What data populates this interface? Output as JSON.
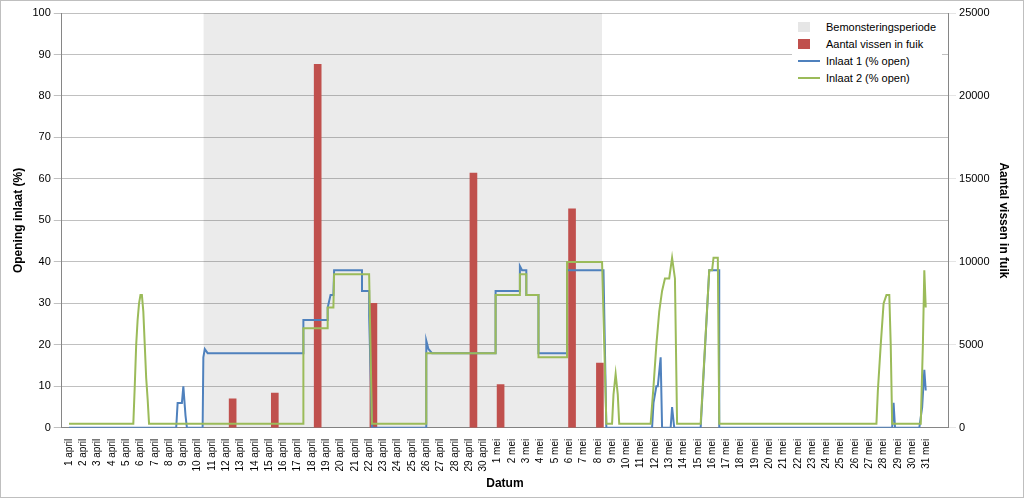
{
  "chart_data": {
    "type": "line",
    "x_label": "Datum",
    "y_label": "Opening inlaat (%)",
    "y2_label": "Aantal vissen in fuik",
    "xlim": [
      1,
      62
    ],
    "xticks": [
      {
        "value": 1,
        "label": "1 april"
      },
      {
        "value": 2,
        "label": "2 april"
      },
      {
        "value": 3,
        "label": "3 april"
      },
      {
        "value": 4,
        "label": "4 april"
      },
      {
        "value": 5,
        "label": "5 april"
      },
      {
        "value": 6,
        "label": "6 april"
      },
      {
        "value": 7,
        "label": "7 april"
      },
      {
        "value": 8,
        "label": "8 april"
      },
      {
        "value": 9,
        "label": "9 april"
      },
      {
        "value": 10,
        "label": "10 april"
      },
      {
        "value": 11,
        "label": "11 april"
      },
      {
        "value": 12,
        "label": "12 april"
      },
      {
        "value": 13,
        "label": "13 april"
      },
      {
        "value": 14,
        "label": "14 april"
      },
      {
        "value": 15,
        "label": "15 april"
      },
      {
        "value": 16,
        "label": "16 april"
      },
      {
        "value": 17,
        "label": "17 april"
      },
      {
        "value": 18,
        "label": "18 april"
      },
      {
        "value": 19,
        "label": "19 april"
      },
      {
        "value": 20,
        "label": "20 april"
      },
      {
        "value": 21,
        "label": "21 april"
      },
      {
        "value": 22,
        "label": "22 april"
      },
      {
        "value": 23,
        "label": "23 april"
      },
      {
        "value": 24,
        "label": "24 april"
      },
      {
        "value": 25,
        "label": "25 april"
      },
      {
        "value": 26,
        "label": "26 april"
      },
      {
        "value": 27,
        "label": "27 april"
      },
      {
        "value": 28,
        "label": "28 april"
      },
      {
        "value": 29,
        "label": "29 april"
      },
      {
        "value": 30,
        "label": "30 april"
      },
      {
        "value": 31,
        "label": "1 mei"
      },
      {
        "value": 32,
        "label": "2 mei"
      },
      {
        "value": 33,
        "label": "3 mei"
      },
      {
        "value": 34,
        "label": "4 mei"
      },
      {
        "value": 35,
        "label": "5 mei"
      },
      {
        "value": 36,
        "label": "6 mei"
      },
      {
        "value": 37,
        "label": "7 mei"
      },
      {
        "value": 38,
        "label": "8 mei"
      },
      {
        "value": 39,
        "label": "9 mei"
      },
      {
        "value": 40,
        "label": "10 mei"
      },
      {
        "value": 41,
        "label": "11 mei"
      },
      {
        "value": 42,
        "label": "12 mei"
      },
      {
        "value": 43,
        "label": "13 mei"
      },
      {
        "value": 44,
        "label": "14 mei"
      },
      {
        "value": 45,
        "label": "15 mei"
      },
      {
        "value": 46,
        "label": "16 mei"
      },
      {
        "value": 47,
        "label": "17 mei"
      },
      {
        "value": 48,
        "label": "18 mei"
      },
      {
        "value": 49,
        "label": "19 mei"
      },
      {
        "value": 50,
        "label": "20 mei"
      },
      {
        "value": 51,
        "label": "21 mei"
      },
      {
        "value": 52,
        "label": "22 mei"
      },
      {
        "value": 53,
        "label": "23 mei"
      },
      {
        "value": 54,
        "label": "24 mei"
      },
      {
        "value": 55,
        "label": "25 mei"
      },
      {
        "value": 56,
        "label": "26 mei"
      },
      {
        "value": 57,
        "label": "27 mei"
      },
      {
        "value": 58,
        "label": "28 mei"
      },
      {
        "value": 59,
        "label": "29 mei"
      },
      {
        "value": 60,
        "label": "30 mei"
      },
      {
        "value": 61,
        "label": "31 mei"
      }
    ],
    "ylim": [
      0,
      100
    ],
    "yticks": [
      0,
      10,
      20,
      30,
      40,
      50,
      60,
      70,
      80,
      90,
      100
    ],
    "y2lim": [
      0,
      25000
    ],
    "y2ticks": [
      0,
      5000,
      10000,
      15000,
      20000,
      25000
    ],
    "grid": true,
    "legend": "upper right",
    "series": [
      {
        "name": "Bemonsteringsperiode",
        "type": "area",
        "color": "rgba(0,0,0,0.08)",
        "x": [
          10.4,
          38.3
        ],
        "values": [
          100,
          100
        ]
      },
      {
        "name": "Aantal vissen in fuik",
        "type": "bar",
        "color": "#c0504d",
        "axis": "y2",
        "x": [
          12.45,
          15.4,
          18.4,
          22.3,
          29.3,
          31.2,
          36.2,
          38.15
        ],
        "values": [
          1750,
          2100,
          21900,
          7500,
          15350,
          2600,
          13200,
          3900
        ]
      },
      {
        "name": "Inlaat 1 (% open)",
        "type": "line",
        "color": "#4f81bd",
        "x": [
          1,
          8.5,
          8.6,
          8.9,
          9.0,
          9.15,
          9.25,
          10.35,
          10.4,
          10.5,
          10.7,
          17.4,
          17.4,
          19.1,
          19.1,
          19.3,
          19.5,
          19.55,
          21.5,
          21.5,
          22.0,
          22.0,
          22.2,
          26.0,
          26.0,
          26.15,
          26.4,
          30.85,
          30.85,
          32.55,
          32.55,
          32.7,
          33.0,
          33.0,
          33.85,
          33.85,
          35.85,
          35.85,
          38.4,
          38.6,
          41.8,
          41.9,
          42.1,
          42.2,
          42.4,
          42.5,
          43.1,
          43.2,
          43.35,
          45.2,
          45.8,
          46.5,
          46.5,
          58.6,
          58.7,
          58.8,
          60.5,
          60.7,
          60.85,
          60.95
        ],
        "values": [
          0,
          0,
          6,
          6,
          10,
          3,
          0,
          0,
          17,
          19,
          18,
          18,
          26,
          26,
          29,
          32,
          32,
          38,
          38,
          33,
          33,
          27,
          0,
          0,
          21,
          19,
          18,
          18,
          33,
          33,
          39,
          38,
          38,
          32,
          32,
          18,
          18,
          38,
          38,
          0,
          0,
          6,
          10,
          10,
          17,
          0,
          0,
          5,
          0,
          0,
          38,
          38,
          0,
          0,
          6,
          0,
          0,
          5,
          14,
          9
        ]
      },
      {
        "name": "Inlaat 2 (% open)",
        "type": "line",
        "color": "#9bbb59",
        "x": [
          1,
          5.5,
          5.6,
          5.7,
          5.8,
          5.9,
          6.0,
          6.1,
          6.2,
          6.3,
          6.4,
          6.5,
          6.6,
          17.4,
          17.4,
          19.1,
          19.1,
          19.5,
          19.55,
          22.0,
          22.2,
          26.0,
          26.0,
          30.85,
          30.85,
          32.55,
          32.55,
          33.0,
          33.0,
          33.85,
          33.85,
          35.85,
          35.85,
          38.3,
          38.6,
          39.0,
          39.1,
          39.25,
          39.4,
          39.5,
          41.7,
          41.9,
          42.1,
          42.3,
          42.5,
          42.7,
          43.0,
          43.2,
          43.4,
          43.55,
          45.2,
          45.8,
          46.0,
          46.1,
          46.4,
          46.5,
          57.5,
          57.6,
          57.8,
          58.0,
          58.2,
          58.4,
          58.5,
          58.6,
          60.6,
          60.75,
          60.85,
          60.95
        ],
        "values": [
          1,
          1,
          10,
          20,
          26,
          30,
          32,
          32,
          28,
          20,
          12,
          7,
          1,
          1,
          24,
          24,
          29,
          29,
          37,
          37,
          1,
          1,
          18,
          18,
          32,
          32,
          37,
          37,
          32,
          32,
          17,
          17,
          40,
          40,
          1,
          1,
          8,
          13,
          8,
          1,
          1,
          10,
          20,
          28,
          33,
          36,
          36,
          41,
          36,
          1,
          1,
          38,
          38,
          41,
          41,
          1,
          1,
          9,
          20,
          30,
          32,
          32,
          20,
          1,
          1,
          20,
          38,
          29
        ]
      }
    ]
  }
}
